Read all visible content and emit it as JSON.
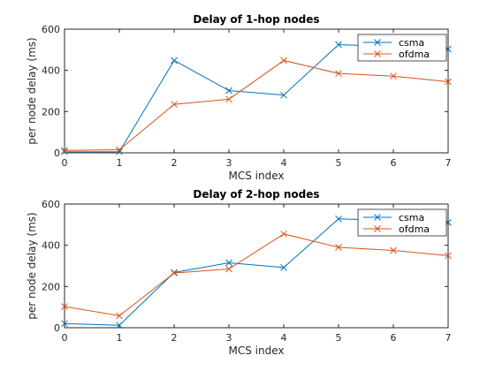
{
  "colors": {
    "csma": "#0072BD",
    "ofdma": "#D95319"
  },
  "chart_data": [
    {
      "type": "line",
      "title": "Delay of 1-hop nodes",
      "xlabel": "MCS index",
      "ylabel": "per node delay (ms)",
      "x": [
        0,
        1,
        2,
        3,
        4,
        5,
        6,
        7
      ],
      "xlim": [
        0,
        7
      ],
      "ylim": [
        0,
        600
      ],
      "xticks": [
        "0",
        "1",
        "2",
        "3",
        "4",
        "5",
        "6",
        "7"
      ],
      "yticks": [
        "0",
        "200",
        "400",
        "600"
      ],
      "legend": "top-right",
      "grid": false,
      "marker": "x",
      "series": [
        {
          "name": "csma",
          "values": [
            5,
            5,
            448,
            302,
            280,
            525,
            515,
            503
          ]
        },
        {
          "name": "ofdma",
          "values": [
            12,
            15,
            235,
            260,
            448,
            385,
            372,
            345
          ]
        }
      ]
    },
    {
      "type": "line",
      "title": "Delay of 2-hop nodes",
      "xlabel": "MCS index",
      "ylabel": "per node delay (ms)",
      "x": [
        0,
        1,
        2,
        3,
        4,
        5,
        6,
        7
      ],
      "xlim": [
        0,
        7
      ],
      "ylim": [
        0,
        600
      ],
      "xticks": [
        "0",
        "1",
        "2",
        "3",
        "4",
        "5",
        "6",
        "7"
      ],
      "yticks": [
        "0",
        "200",
        "400",
        "600"
      ],
      "legend": "top-right",
      "grid": false,
      "marker": "x",
      "series": [
        {
          "name": "csma",
          "values": [
            20,
            12,
            268,
            315,
            292,
            528,
            520,
            510
          ]
        },
        {
          "name": "ofdma",
          "values": [
            103,
            58,
            265,
            285,
            455,
            390,
            375,
            350
          ]
        }
      ]
    }
  ]
}
